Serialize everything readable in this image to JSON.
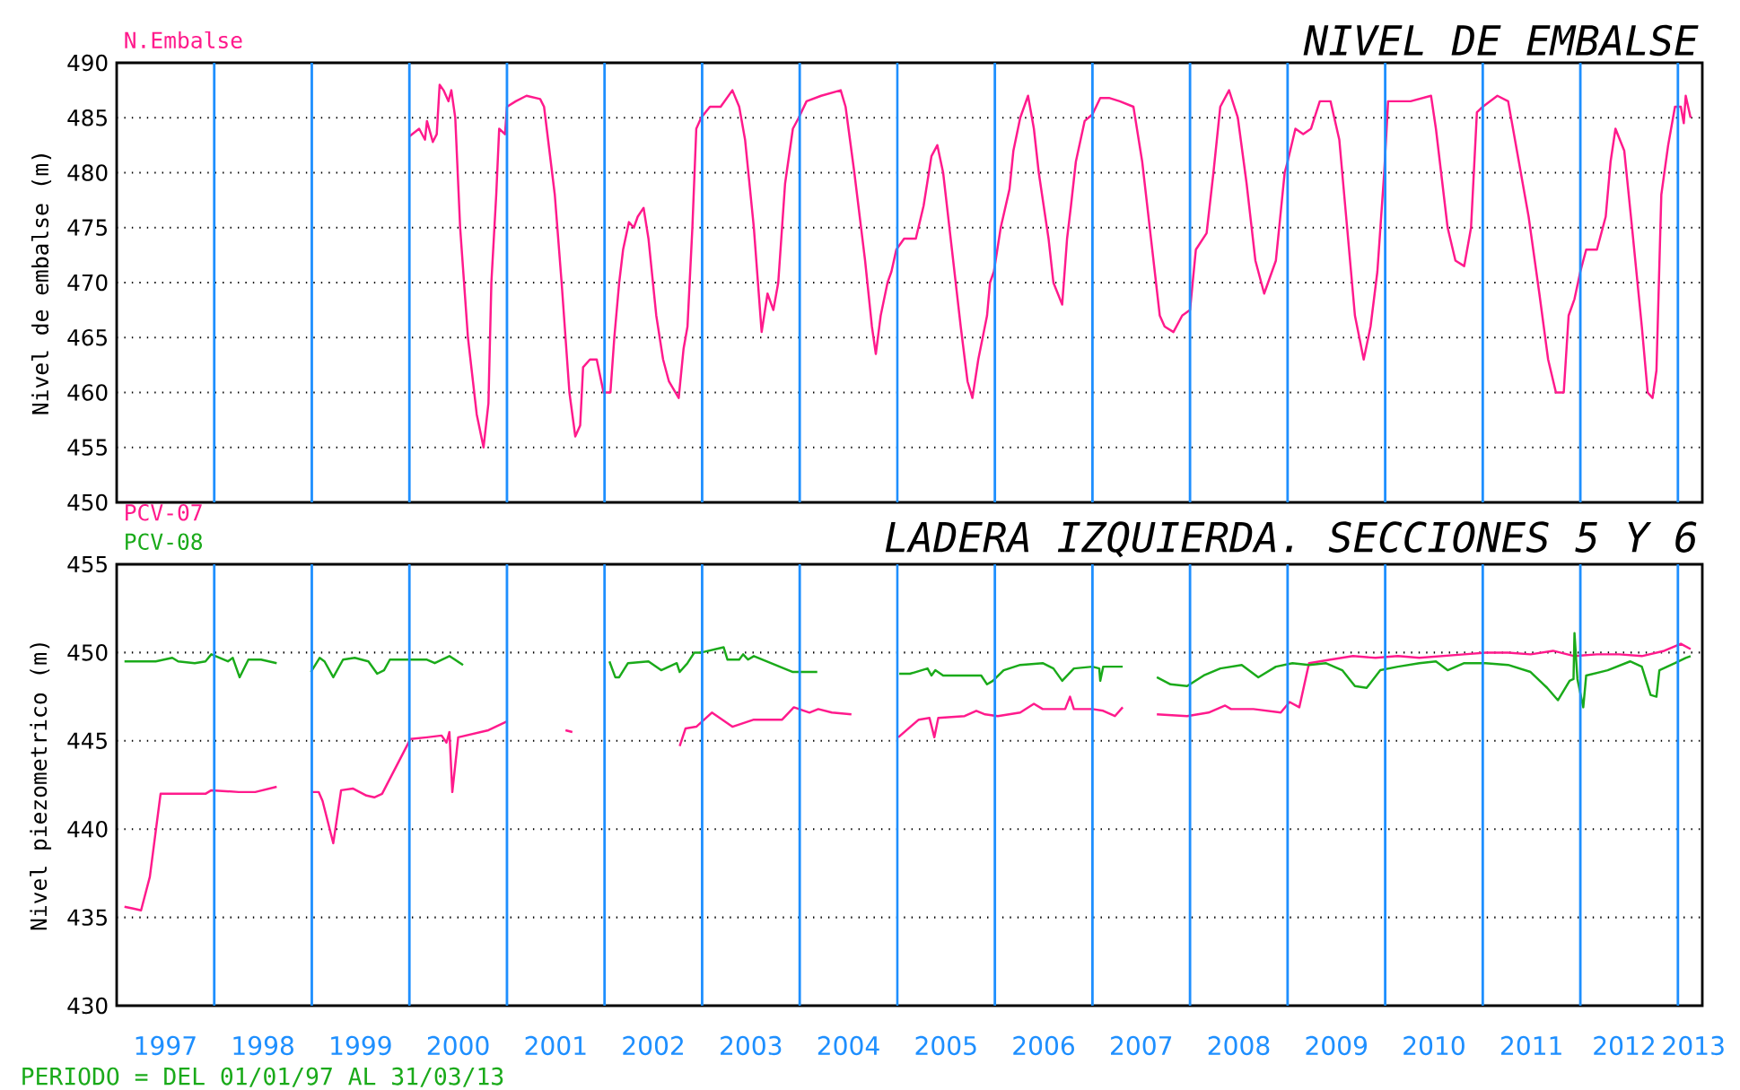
{
  "chart_data": [
    {
      "type": "line",
      "title": "NIVEL DE EMBALSE",
      "ylabel": "Nivel de embalse (m)",
      "xlim": [
        1997,
        2013.25
      ],
      "ylim": [
        450,
        490
      ],
      "yticks": [
        450,
        455,
        460,
        465,
        470,
        475,
        480,
        485,
        490
      ],
      "grid": "y",
      "legend": "top left",
      "tick_labels": "y",
      "ref_lines": [
        {
          "axis": "x",
          "value": 1998,
          "color": "#1e8fff"
        },
        {
          "axis": "x",
          "value": 1999,
          "color": "#1e8fff"
        },
        {
          "axis": "x",
          "value": 2000,
          "color": "#1e8fff"
        },
        {
          "axis": "x",
          "value": 2001,
          "color": "#1e8fff"
        },
        {
          "axis": "x",
          "value": 2002,
          "color": "#1e8fff"
        },
        {
          "axis": "x",
          "value": 2003,
          "color": "#1e8fff"
        },
        {
          "axis": "x",
          "value": 2004,
          "color": "#1e8fff"
        },
        {
          "axis": "x",
          "value": 2005,
          "color": "#1e8fff"
        },
        {
          "axis": "x",
          "value": 2006,
          "color": "#1e8fff"
        },
        {
          "axis": "x",
          "value": 2007,
          "color": "#1e8fff"
        },
        {
          "axis": "x",
          "value": 2008,
          "color": "#1e8fff"
        },
        {
          "axis": "x",
          "value": 2009,
          "color": "#1e8fff"
        },
        {
          "axis": "x",
          "value": 2010,
          "color": "#1e8fff"
        },
        {
          "axis": "x",
          "value": 2011,
          "color": "#1e8fff"
        },
        {
          "axis": "x",
          "value": 2012,
          "color": "#1e8fff"
        },
        {
          "axis": "x",
          "value": 2013,
          "color": "#1e8fff"
        }
      ],
      "series": [
        {
          "name": "N.Embalse",
          "color": "#ff1a8c",
          "x": [
            2000.0,
            2000.1,
            2000.16,
            2000.18,
            2000.24,
            2000.28,
            2000.31,
            2000.35,
            2000.4,
            2000.43,
            2000.47,
            2000.52,
            2000.6,
            2000.69,
            2000.76,
            2000.81,
            2000.84,
            2000.89,
            2000.92,
            2000.98,
            2001.0,
            2001.09,
            2001.2,
            2001.34,
            2001.38,
            2001.49,
            2001.56,
            2001.64,
            2001.7,
            2001.75,
            2001.78,
            2001.85,
            2001.92,
            2001.99,
            2002.06,
            2002.1,
            2002.15,
            2002.19,
            2002.25,
            2002.3,
            2002.34,
            2002.4,
            2002.45,
            2002.53,
            2002.6,
            2002.66,
            2002.76,
            2002.81,
            2002.85,
            2002.9,
            2002.94,
            2002.99,
            2003.08,
            2003.19,
            2003.31,
            2003.38,
            2003.44,
            2003.53,
            2003.61,
            2003.67,
            2003.73,
            2003.78,
            2003.85,
            2003.93,
            2003.99,
            2004.07,
            2004.22,
            2004.42,
            2004.47,
            2004.56,
            2004.67,
            2004.74,
            2004.78,
            2004.83,
            2004.9,
            2004.94,
            2004.99,
            2005.07,
            2005.19,
            2005.27,
            2005.35,
            2005.41,
            2005.47,
            2005.56,
            2005.65,
            2005.72,
            2005.77,
            2005.83,
            2005.92,
            2005.95,
            2005.99,
            2006.06,
            2006.15,
            2006.19,
            2006.26,
            2006.34,
            2006.4,
            2006.45,
            2006.55,
            2006.6,
            2006.69,
            2006.74,
            2006.78,
            2006.83,
            2006.92,
            2007.0,
            2007.08,
            2007.17,
            2007.28,
            2007.42,
            2007.51,
            2007.6,
            2007.69,
            2007.74,
            2007.83,
            2007.92,
            2008.0,
            2008.06,
            2008.17,
            2008.24,
            2008.31,
            2008.4,
            2008.49,
            2008.58,
            2008.67,
            2008.76,
            2008.88,
            2008.97,
            2009.0,
            2009.08,
            2009.16,
            2009.24,
            2009.33,
            2009.44,
            2009.53,
            2009.61,
            2009.69,
            2009.78,
            2009.85,
            2009.92,
            2009.99,
            2010.03,
            2010.13,
            2010.26,
            2010.47,
            2010.52,
            2010.64,
            2010.72,
            2010.81,
            2010.88,
            2010.94,
            2011.0,
            2011.15,
            2011.26,
            2011.35,
            2011.47,
            2011.58,
            2011.67,
            2011.75,
            2011.83,
            2011.88,
            2011.94,
            2012.0,
            2012.06,
            2012.17,
            2012.26,
            2012.31,
            2012.36,
            2012.45,
            2012.53,
            2012.63,
            2012.69,
            2012.74,
            2012.78,
            2012.83,
            2012.9,
            2012.97,
            2013.03,
            2013.06,
            2013.08,
            2013.13
          ],
          "values": [
            483.3,
            484,
            483,
            484.7,
            482.8,
            483.5,
            488,
            487.5,
            486.5,
            487.5,
            485,
            475,
            465,
            458,
            455,
            459,
            470,
            478,
            484,
            483.5,
            486,
            486.5,
            487,
            486.7,
            486,
            478,
            470,
            460,
            456,
            457,
            462.3,
            463,
            463,
            460,
            460,
            465,
            470,
            473,
            475.5,
            475,
            476,
            476.8,
            474,
            467,
            463,
            461,
            459.5,
            464,
            466,
            475,
            484,
            485,
            486,
            486,
            487.5,
            486,
            483,
            475,
            465.5,
            469,
            467.5,
            470,
            479,
            484,
            485,
            486.5,
            487,
            487.5,
            486,
            480,
            472,
            466,
            463.5,
            467,
            470,
            471,
            473,
            474,
            474,
            477,
            481.5,
            482.5,
            480,
            473,
            466,
            461,
            459.5,
            463,
            467,
            470,
            471,
            475,
            478.5,
            482,
            485,
            487,
            484,
            480,
            474,
            470,
            468,
            474,
            477,
            481,
            484.7,
            485.3,
            486.8,
            486.8,
            486.5,
            486,
            481,
            474,
            467,
            466,
            465.5,
            467,
            467.5,
            473,
            474.5,
            480,
            486,
            487.5,
            485,
            479,
            472,
            469,
            472,
            480,
            481,
            484,
            483.5,
            484,
            486.5,
            486.5,
            483,
            475,
            467,
            463,
            466,
            471,
            480,
            486.5,
            486.5,
            486.5,
            487,
            484,
            475,
            472,
            471.5,
            475,
            485.5,
            486,
            487,
            486.5,
            482,
            476,
            469,
            463,
            460,
            460,
            467,
            468.5,
            471,
            473,
            473,
            476,
            481,
            484,
            482,
            475,
            466,
            460,
            459.5,
            462,
            478,
            482.5,
            486,
            486,
            484.5,
            487,
            485
          ]
        }
      ]
    },
    {
      "type": "line",
      "title": "LADERA IZQUIERDA. SECCIONES 5 Y 6",
      "ylabel": "Nivel piezometrico (m)",
      "xlim": [
        1997,
        2013.25
      ],
      "ylim": [
        430,
        455
      ],
      "yticks": [
        430,
        435,
        440,
        445,
        450,
        455
      ],
      "xticks": [
        {
          "value": 1997.5,
          "label": "1997"
        },
        {
          "value": 1998.5,
          "label": "1998"
        },
        {
          "value": 1999.5,
          "label": "1999"
        },
        {
          "value": 2000.5,
          "label": "2000"
        },
        {
          "value": 2001.5,
          "label": "2001"
        },
        {
          "value": 2002.5,
          "label": "2002"
        },
        {
          "value": 2003.5,
          "label": "2003"
        },
        {
          "value": 2004.5,
          "label": "2004"
        },
        {
          "value": 2005.5,
          "label": "2005"
        },
        {
          "value": 2006.5,
          "label": "2006"
        },
        {
          "value": 2007.5,
          "label": "2007"
        },
        {
          "value": 2008.5,
          "label": "2008"
        },
        {
          "value": 2009.5,
          "label": "2009"
        },
        {
          "value": 2010.5,
          "label": "2010"
        },
        {
          "value": 2011.5,
          "label": "2011"
        },
        {
          "value": 2012.45,
          "label": "2012"
        },
        {
          "value": 2013.16,
          "label": "2013"
        }
      ],
      "grid": "y",
      "legend": "top left",
      "annotations": [
        "PERIODO = DEL 01/01/97 AL 31/03/13"
      ],
      "ref_lines": [
        {
          "axis": "x",
          "value": 1998,
          "color": "#1e8fff"
        },
        {
          "axis": "x",
          "value": 1999,
          "color": "#1e8fff"
        },
        {
          "axis": "x",
          "value": 2000,
          "color": "#1e8fff"
        },
        {
          "axis": "x",
          "value": 2001,
          "color": "#1e8fff"
        },
        {
          "axis": "x",
          "value": 2002,
          "color": "#1e8fff"
        },
        {
          "axis": "x",
          "value": 2003,
          "color": "#1e8fff"
        },
        {
          "axis": "x",
          "value": 2004,
          "color": "#1e8fff"
        },
        {
          "axis": "x",
          "value": 2005,
          "color": "#1e8fff"
        },
        {
          "axis": "x",
          "value": 2006,
          "color": "#1e8fff"
        },
        {
          "axis": "x",
          "value": 2007,
          "color": "#1e8fff"
        },
        {
          "axis": "x",
          "value": 2008,
          "color": "#1e8fff"
        },
        {
          "axis": "x",
          "value": 2009,
          "color": "#1e8fff"
        },
        {
          "axis": "x",
          "value": 2010,
          "color": "#1e8fff"
        },
        {
          "axis": "x",
          "value": 2011,
          "color": "#1e8fff"
        },
        {
          "axis": "x",
          "value": 2012,
          "color": "#1e8fff"
        },
        {
          "axis": "x",
          "value": 2013,
          "color": "#1e8fff"
        }
      ],
      "series": [
        {
          "name": "PCV-07",
          "color": "#ff1a8c",
          "x": [
            1997.08,
            1997.17,
            1997.25,
            1997.34,
            1997.45,
            1997.91,
            1997.97,
            1998.25,
            1998.42,
            1998.64,
            1998.8,
            1998.99,
            1999.07,
            1999.11,
            1999.22,
            1999.3,
            1999.42,
            1999.56,
            1999.64,
            1999.72,
            2000.01,
            2000.18,
            2000.33,
            2000.38,
            2000.41,
            2000.44,
            2000.5,
            2000.81,
            2001.0,
            2001.3,
            2001.6,
            2001.67,
            2002.2,
            2002.77,
            2002.83,
            2002.94,
            2003.1,
            2003.31,
            2003.53,
            2003.82,
            2003.94,
            2004.1,
            2004.19,
            2004.33,
            2004.53,
            2004.8,
            2005.01,
            2005.22,
            2005.33,
            2005.38,
            2005.42,
            2005.69,
            2005.81,
            2005.9,
            2006.03,
            2006.26,
            2006.4,
            2006.49,
            2006.72,
            2006.77,
            2006.81,
            2007.0,
            2007.11,
            2007.23,
            2007.31,
            2007.5,
            2007.66,
            2007.97,
            2008.19,
            2008.36,
            2008.42,
            2008.65,
            2008.93,
            2009.02,
            2009.12,
            2009.22,
            2009.44,
            2009.67,
            2009.9,
            2010.13,
            2010.35,
            2010.58,
            2010.81,
            2011.03,
            2011.26,
            2011.49,
            2011.72,
            2011.94,
            2012.17,
            2012.4,
            2012.63,
            2012.86,
            2013.03,
            2013.13
          ],
          "values": [
            435.6,
            435.5,
            435.4,
            437.3,
            442,
            442,
            442.2,
            442.1,
            442.1,
            442.4,
            null,
            442.1,
            442.1,
            441.6,
            439.2,
            442.2,
            442.3,
            441.9,
            441.8,
            442,
            445.1,
            445.2,
            445.3,
            444.9,
            445.5,
            442.1,
            445.2,
            445.6,
            446.1,
            null,
            445.6,
            445.5,
            null,
            444.7,
            445.7,
            445.8,
            446.6,
            445.8,
            446.2,
            446.2,
            446.9,
            446.6,
            446.8,
            446.6,
            446.5,
            null,
            445.2,
            446.2,
            446.3,
            445.2,
            446.3,
            446.4,
            446.7,
            446.5,
            446.4,
            446.6,
            447.1,
            446.8,
            446.8,
            447.5,
            446.8,
            446.8,
            446.7,
            446.4,
            446.9,
            null,
            446.5,
            446.4,
            446.6,
            447,
            446.8,
            446.8,
            446.6,
            447.2,
            446.9,
            449.4,
            449.6,
            449.8,
            449.7,
            449.8,
            449.7,
            449.8,
            449.9,
            450,
            450,
            449.9,
            450.1,
            449.8,
            449.9,
            449.9,
            449.8,
            450.1,
            450.5,
            450.2
          ]
        },
        {
          "name": "PCV-08",
          "color": "#1aaa1a",
          "x": [
            1997.08,
            1997.4,
            1997.57,
            1997.63,
            1997.8,
            1997.91,
            1997.97,
            1998.14,
            1998.19,
            1998.26,
            1998.35,
            1998.48,
            1998.64,
            1998.8,
            1998.99,
            1999.08,
            1999.13,
            1999.22,
            1999.32,
            1999.44,
            1999.58,
            1999.67,
            1999.74,
            1999.8,
            2000.01,
            2000.18,
            2000.26,
            2000.41,
            2000.55,
            2001.3,
            2002.05,
            2002.11,
            2002.15,
            2002.24,
            2002.45,
            2002.58,
            2002.74,
            2002.77,
            2002.85,
            2002.92,
            2002.99,
            2003.22,
            2003.26,
            2003.38,
            2003.42,
            2003.47,
            2003.53,
            2003.93,
            2004.18,
            2004.6,
            2005.02,
            2005.13,
            2005.31,
            2005.35,
            2005.39,
            2005.47,
            2005.86,
            2005.92,
            2005.98,
            2006.09,
            2006.26,
            2006.49,
            2006.6,
            2006.69,
            2006.81,
            2007.0,
            2007.07,
            2007.08,
            2007.11,
            2007.31,
            2007.5,
            2007.66,
            2007.8,
            2007.97,
            2008.14,
            2008.31,
            2008.53,
            2008.7,
            2008.88,
            2009.05,
            2009.22,
            2009.39,
            2009.56,
            2009.69,
            2009.81,
            2009.95,
            2010.13,
            2010.35,
            2010.52,
            2010.64,
            2010.81,
            2011.03,
            2011.26,
            2011.49,
            2011.66,
            2011.77,
            2011.89,
            2011.93,
            2011.94,
            2011.97,
            2012.03,
            2012.06,
            2012.28,
            2012.51,
            2012.63,
            2012.72,
            2012.78,
            2012.81,
            2012.97,
            2013.08,
            2013.13
          ],
          "values": [
            449.5,
            449.5,
            449.7,
            449.5,
            449.4,
            449.5,
            449.9,
            449.5,
            449.7,
            448.6,
            449.6,
            449.6,
            449.4,
            null,
            448.9,
            449.7,
            449.5,
            448.6,
            449.6,
            449.7,
            449.5,
            448.8,
            449,
            449.6,
            449.6,
            449.6,
            449.4,
            449.8,
            449.3,
            null,
            449.5,
            448.6,
            448.6,
            449.4,
            449.5,
            449,
            449.4,
            448.9,
            449.4,
            450,
            450,
            450.3,
            449.6,
            449.6,
            449.9,
            449.6,
            449.8,
            448.9,
            448.9,
            null,
            448.8,
            448.8,
            449.1,
            448.7,
            449,
            448.7,
            448.7,
            448.2,
            448.4,
            449,
            449.3,
            449.4,
            449.1,
            448.4,
            449.1,
            449.2,
            449.1,
            448.4,
            449.2,
            449.2,
            null,
            448.6,
            448.2,
            448.1,
            448.7,
            449.1,
            449.3,
            448.6,
            449.2,
            449.4,
            449.3,
            449.4,
            449,
            448.1,
            448,
            449,
            449.2,
            449.4,
            449.5,
            449,
            449.4,
            449.4,
            449.3,
            448.9,
            448,
            447.3,
            448.4,
            448.5,
            451.1,
            448.5,
            446.9,
            448.7,
            449,
            449.5,
            449.2,
            447.6,
            447.5,
            449,
            449.4,
            449.7,
            449.8
          ]
        }
      ]
    }
  ]
}
